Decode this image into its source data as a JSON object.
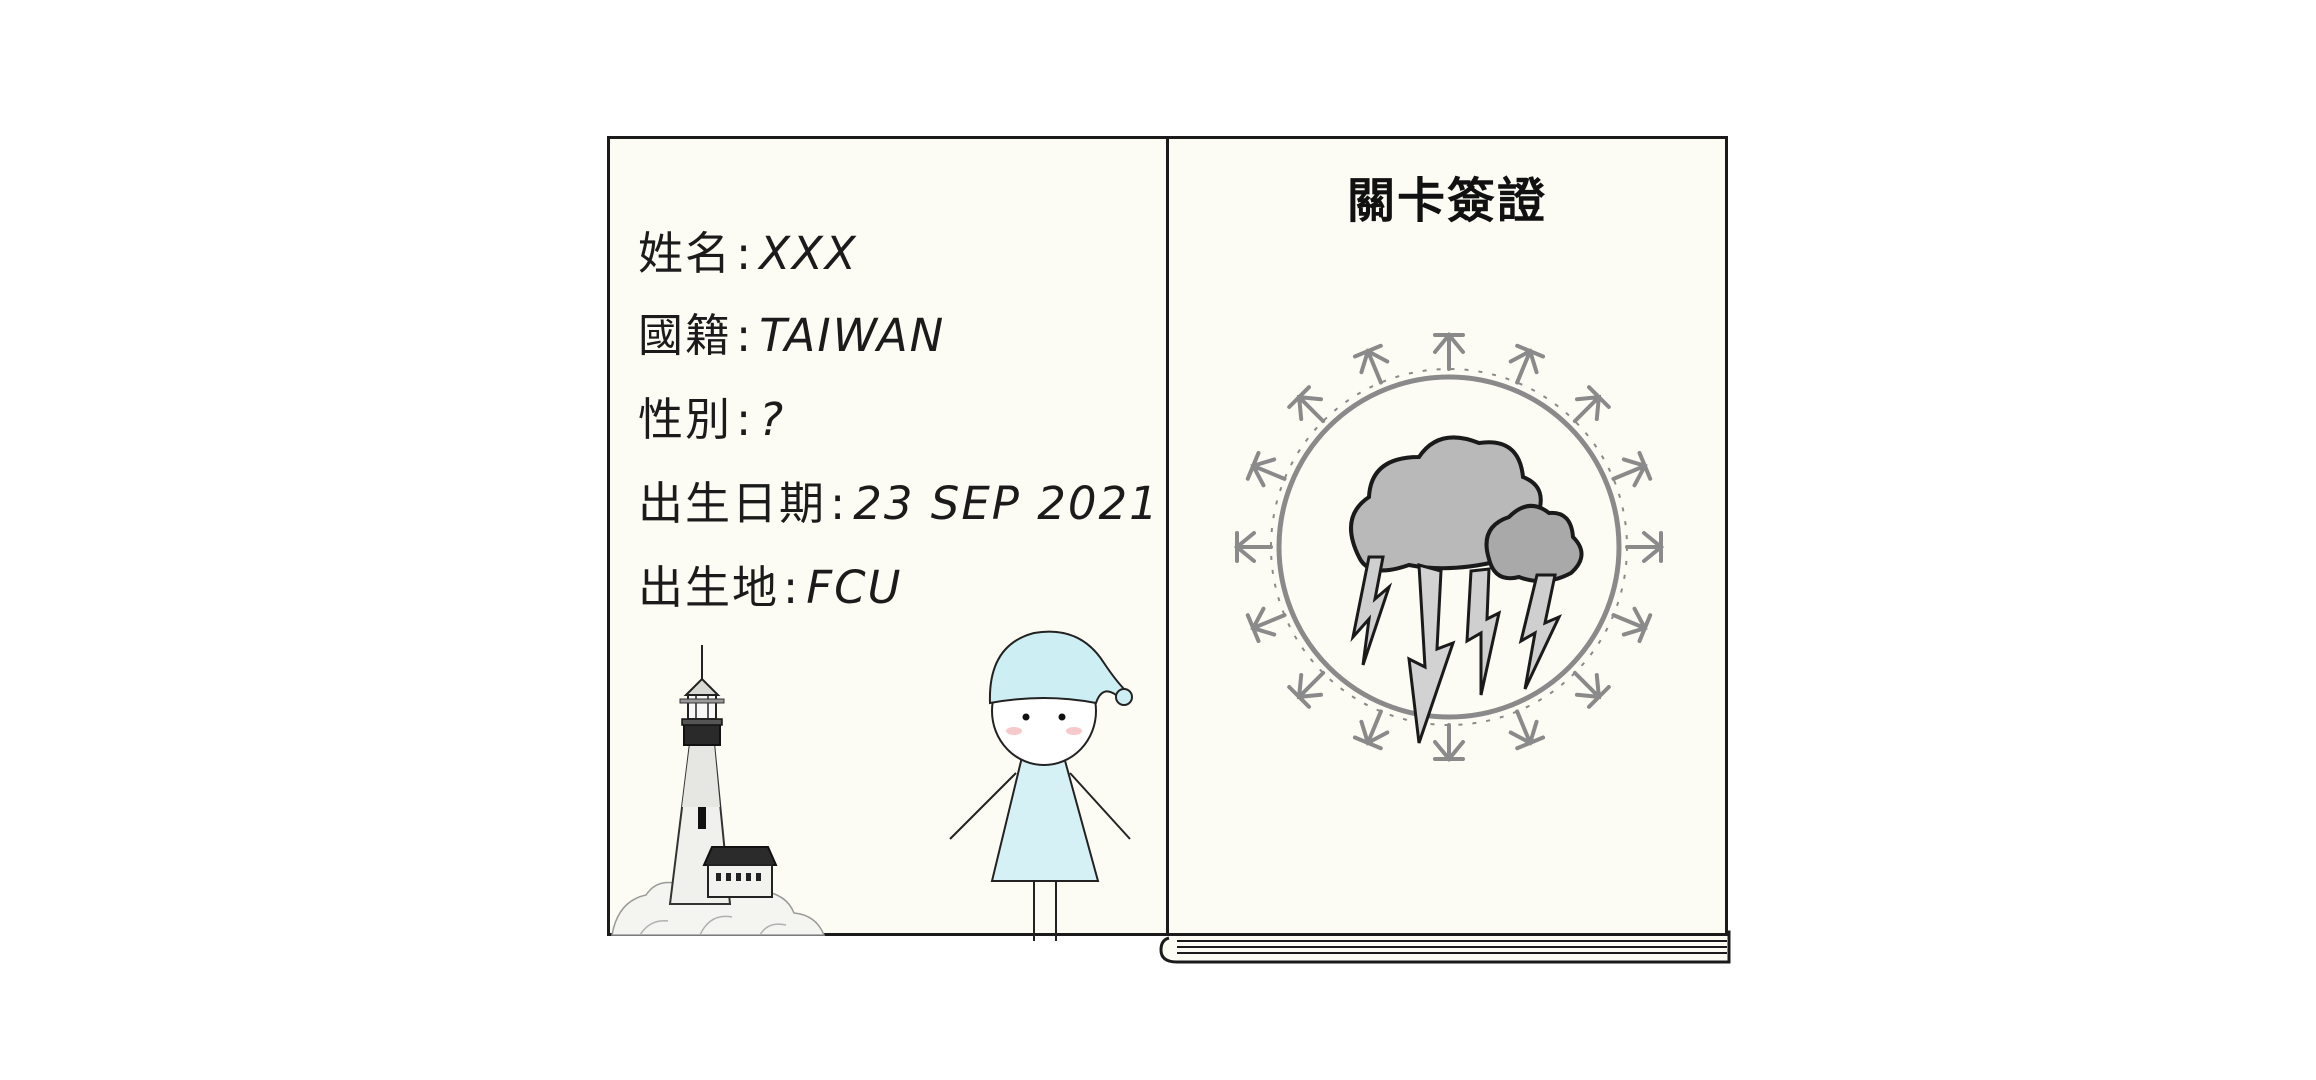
{
  "passport": {
    "fields": [
      {
        "label": "姓名",
        "value": "XXX"
      },
      {
        "label": "國籍",
        "value": "TAIWAN"
      },
      {
        "label": "性別",
        "value": "?"
      },
      {
        "label": "出生日期",
        "value": "23 SEP 2021"
      },
      {
        "label": "出生地",
        "value": "FCU"
      }
    ],
    "separator": ":"
  },
  "visa": {
    "title": "關卡簽證"
  },
  "icons": {
    "lighthouse": "lighthouse-icon",
    "character": "sleeping-cap-figure",
    "stamp": "thunderstorm-stamp-icon"
  },
  "colors": {
    "page": "#fdfcf4",
    "ink": "#1b1b1b",
    "cap": "#cdeef3",
    "dress": "#d6f1f5",
    "cloud": "#b9b9b9",
    "stamp": "#8a8a8a"
  }
}
